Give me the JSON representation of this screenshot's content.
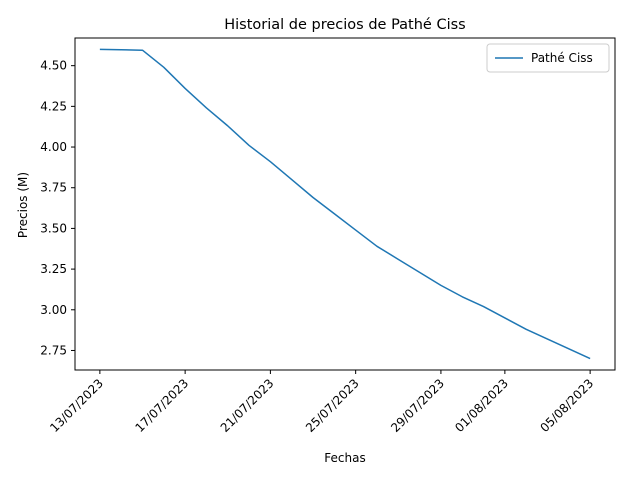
{
  "chart_data": {
    "type": "line",
    "title": "Historial de precios de Pathé Ciss",
    "xlabel": "Fechas",
    "ylabel": "Precios (M)",
    "x_tick_labels": [
      "13/07/2023",
      "17/07/2023",
      "21/07/2023",
      "25/07/2023",
      "29/07/2023",
      "01/08/2023",
      "05/08/2023"
    ],
    "x_tick_dates": [
      "2023-07-13",
      "2023-07-17",
      "2023-07-21",
      "2023-07-25",
      "2023-07-29",
      "2023-08-01",
      "2023-08-05"
    ],
    "y_ticks": [
      2.75,
      3.0,
      3.25,
      3.5,
      3.75,
      4.0,
      4.25,
      4.5
    ],
    "y_tick_labels": [
      "2.75",
      "3.00",
      "3.25",
      "3.50",
      "3.75",
      "4.00",
      "4.25",
      "4.50"
    ],
    "ylim": [
      2.63,
      4.67
    ],
    "xlim": [
      "2023-07-11T20:00",
      "2023-08-06T04:00"
    ],
    "grid": false,
    "legend_position": "top-right",
    "series": [
      {
        "name": "Pathé Ciss",
        "color": "#1f77b4",
        "x": [
          "2023-07-13",
          "2023-07-14",
          "2023-07-15",
          "2023-07-16",
          "2023-07-17",
          "2023-07-18",
          "2023-07-19",
          "2023-07-20",
          "2023-07-21",
          "2023-07-22",
          "2023-07-23",
          "2023-07-24",
          "2023-07-25",
          "2023-07-26",
          "2023-07-27",
          "2023-07-28",
          "2023-07-29",
          "2023-07-30",
          "2023-07-31",
          "2023-08-01",
          "2023-08-02",
          "2023-08-03",
          "2023-08-04",
          "2023-08-05"
        ],
        "values": [
          4.6,
          4.598,
          4.595,
          4.49,
          4.36,
          4.24,
          4.13,
          4.01,
          3.91,
          3.8,
          3.69,
          3.59,
          3.49,
          3.39,
          3.31,
          3.23,
          3.15,
          3.08,
          3.02,
          2.95,
          2.88,
          2.82,
          2.76,
          2.7
        ]
      }
    ]
  }
}
